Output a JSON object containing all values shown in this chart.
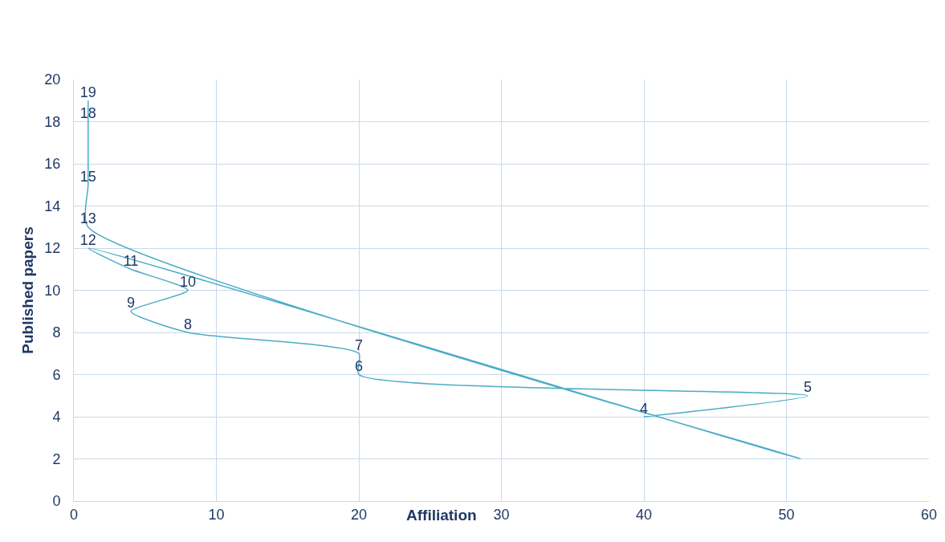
{
  "chart_data": {
    "type": "line",
    "xlabel": "Affiliation",
    "ylabel": "Published papers",
    "series": [
      {
        "color": "#4bacc6",
        "x": [
          1,
          1,
          1,
          1,
          51,
          1,
          4,
          8,
          4,
          8,
          20,
          20,
          51.5,
          40
        ],
        "values": [
          19,
          18,
          15,
          13,
          2,
          12,
          11,
          10,
          9,
          8,
          7,
          6,
          5,
          4
        ],
        "value_labels": [
          "19",
          "18",
          "15",
          "13",
          null,
          "12",
          "11",
          "10",
          "9",
          "8",
          "7",
          "6",
          "5",
          "4"
        ]
      }
    ],
    "xlim": [
      0,
      60
    ],
    "xticks": [
      0,
      10,
      20,
      30,
      40,
      50,
      60
    ],
    "ylim": [
      0,
      20
    ],
    "yticks": [
      0,
      2,
      4,
      6,
      8,
      10,
      12,
      14,
      16,
      18,
      20
    ],
    "grid": true,
    "marker": "none",
    "line_style": "solid",
    "legend": false
  }
}
